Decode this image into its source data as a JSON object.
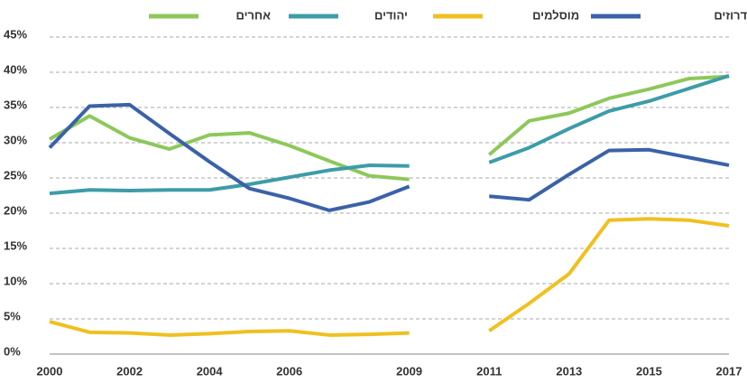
{
  "chart_data": {
    "type": "line",
    "x": [
      2000,
      2001,
      2002,
      2003,
      2004,
      2005,
      2006,
      2007,
      2008,
      2009,
      2010,
      2011,
      2012,
      2013,
      2014,
      2015,
      2016,
      2017
    ],
    "xlim": [
      2000,
      2017
    ],
    "xticks": [
      2000,
      2002,
      2004,
      2006,
      2009,
      2011,
      2013,
      2015,
      2017
    ],
    "ylim": [
      0,
      45
    ],
    "yticks": [
      {
        "value": 0,
        "label": "0%"
      },
      {
        "value": 5,
        "label": "5%"
      },
      {
        "value": 10,
        "label": "10%"
      },
      {
        "value": 15,
        "label": "15%"
      },
      {
        "value": 20,
        "label": "20%"
      },
      {
        "value": 25,
        "label": "25%"
      },
      {
        "value": 30,
        "label": "30%"
      },
      {
        "value": 35,
        "label": "35%"
      },
      {
        "value": 40,
        "label": "40%"
      },
      {
        "value": 45,
        "label": "45%"
      }
    ],
    "grid": true,
    "series": [
      {
        "name": "אחרים",
        "color": "#8dc85a",
        "values": [
          30.5,
          33.8,
          30.7,
          29.1,
          31.1,
          31.4,
          29.6,
          27.4,
          25.3,
          24.8,
          null,
          28.3,
          33.1,
          34.2,
          36.3,
          37.6,
          39.1,
          39.4
        ]
      },
      {
        "name": "יהודים",
        "color": "#3d9ca8",
        "values": [
          22.8,
          23.3,
          23.2,
          23.3,
          23.3,
          24.1,
          25.1,
          26.1,
          26.8,
          26.7,
          null,
          27.2,
          29.3,
          32.0,
          34.5,
          35.9,
          37.7,
          39.5
        ]
      },
      {
        "name": "מוסלמים",
        "color": "#f0c020",
        "values": [
          4.6,
          3.1,
          3.0,
          2.7,
          2.9,
          3.2,
          3.3,
          2.7,
          2.8,
          3.0,
          null,
          3.3,
          7.2,
          11.4,
          19.0,
          19.2,
          19.0,
          18.2
        ]
      },
      {
        "name": "נוצרים/דרוזים",
        "color": "#3a62a8",
        "values": [
          29.3,
          35.2,
          35.4,
          31.3,
          27.3,
          23.5,
          22.1,
          20.4,
          21.6,
          23.8,
          null,
          22.4,
          21.9,
          25.5,
          28.9,
          29.0,
          27.9,
          26.8
        ]
      }
    ]
  }
}
